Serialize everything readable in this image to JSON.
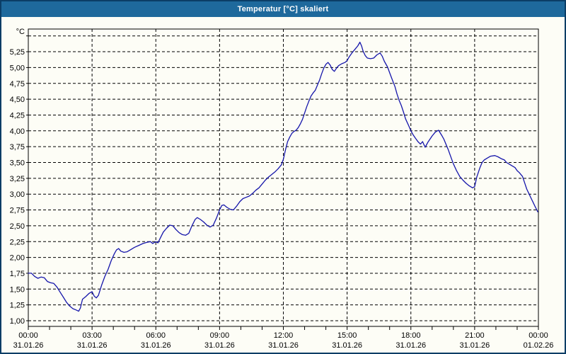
{
  "window": {
    "title": "Temperatur [°C] skaliert"
  },
  "colors": {
    "titlebar": "#1E699C",
    "titlebar_text": "#FFFFFF",
    "window_border": "#0B3D66",
    "background": "#FDFDF6",
    "grid": "#000000",
    "axis_text": "#000000",
    "line": "#1515AA"
  },
  "chart_data": {
    "type": "line",
    "title": "Temperatur [°C] skaliert",
    "xlabel": "",
    "ylabel": "°C",
    "grid": true,
    "legend": "none",
    "y_axis": {
      "unit_label": "°C",
      "min": 1.0,
      "max": 5.5,
      "tick_step": 0.25,
      "decimal_separator": ",",
      "tick_labels": [
        "1,00",
        "1,25",
        "1,50",
        "1,75",
        "2,00",
        "2,25",
        "2,50",
        "2,75",
        "3,00",
        "3,25",
        "3,50",
        "3,75",
        "4,00",
        "4,25",
        "4,50",
        "4,75",
        "5,00",
        "5,25"
      ]
    },
    "x_axis": {
      "hours_span": 24,
      "major_step_hours": 3,
      "minor_step_hours": 1,
      "labels": [
        {
          "h": 0,
          "time": "00:00",
          "date": "31.01.26"
        },
        {
          "h": 3,
          "time": "03:00",
          "date": "31.01.26"
        },
        {
          "h": 6,
          "time": "06:00",
          "date": "31.01.26"
        },
        {
          "h": 9,
          "time": "09:00",
          "date": "31.01.26"
        },
        {
          "h": 12,
          "time": "12:00",
          "date": "31.01.26"
        },
        {
          "h": 15,
          "time": "15:00",
          "date": "31.01.26"
        },
        {
          "h": 18,
          "time": "18:00",
          "date": "31.01.26"
        },
        {
          "h": 21,
          "time": "21:00",
          "date": "31.01.26"
        },
        {
          "h": 24,
          "time": "00:00",
          "date": "01.02.26"
        }
      ]
    },
    "series": [
      {
        "name": "Temperatur",
        "color": "#1515AA",
        "points": [
          [
            0.0,
            1.75
          ],
          [
            0.15,
            1.75
          ],
          [
            0.3,
            1.7
          ],
          [
            0.45,
            1.67
          ],
          [
            0.6,
            1.69
          ],
          [
            0.75,
            1.68
          ],
          [
            0.9,
            1.62
          ],
          [
            1.05,
            1.6
          ],
          [
            1.2,
            1.59
          ],
          [
            1.35,
            1.53
          ],
          [
            1.5,
            1.45
          ],
          [
            1.65,
            1.37
          ],
          [
            1.8,
            1.29
          ],
          [
            1.95,
            1.23
          ],
          [
            2.1,
            1.19
          ],
          [
            2.25,
            1.17
          ],
          [
            2.37,
            1.15
          ],
          [
            2.45,
            1.2
          ],
          [
            2.55,
            1.34
          ],
          [
            2.7,
            1.38
          ],
          [
            2.85,
            1.43
          ],
          [
            3.0,
            1.46
          ],
          [
            3.1,
            1.39
          ],
          [
            3.2,
            1.36
          ],
          [
            3.3,
            1.4
          ],
          [
            3.45,
            1.56
          ],
          [
            3.6,
            1.7
          ],
          [
            3.75,
            1.81
          ],
          [
            3.9,
            1.95
          ],
          [
            4.05,
            2.06
          ],
          [
            4.15,
            2.12
          ],
          [
            4.25,
            2.14
          ],
          [
            4.35,
            2.1
          ],
          [
            4.5,
            2.08
          ],
          [
            4.65,
            2.09
          ],
          [
            4.8,
            2.12
          ],
          [
            5.0,
            2.16
          ],
          [
            5.2,
            2.19
          ],
          [
            5.4,
            2.22
          ],
          [
            5.6,
            2.24
          ],
          [
            5.75,
            2.25
          ],
          [
            5.85,
            2.22
          ],
          [
            6.0,
            2.25
          ],
          [
            6.1,
            2.23
          ],
          [
            6.2,
            2.3
          ],
          [
            6.35,
            2.4
          ],
          [
            6.5,
            2.46
          ],
          [
            6.65,
            2.51
          ],
          [
            6.8,
            2.5
          ],
          [
            6.95,
            2.44
          ],
          [
            7.1,
            2.39
          ],
          [
            7.25,
            2.36
          ],
          [
            7.4,
            2.35
          ],
          [
            7.55,
            2.38
          ],
          [
            7.7,
            2.5
          ],
          [
            7.85,
            2.6
          ],
          [
            7.95,
            2.63
          ],
          [
            8.1,
            2.6
          ],
          [
            8.25,
            2.56
          ],
          [
            8.4,
            2.51
          ],
          [
            8.55,
            2.48
          ],
          [
            8.7,
            2.51
          ],
          [
            8.85,
            2.62
          ],
          [
            9.0,
            2.75
          ],
          [
            9.1,
            2.82
          ],
          [
            9.2,
            2.83
          ],
          [
            9.35,
            2.79
          ],
          [
            9.5,
            2.76
          ],
          [
            9.65,
            2.75
          ],
          [
            9.8,
            2.81
          ],
          [
            9.95,
            2.88
          ],
          [
            10.1,
            2.93
          ],
          [
            10.25,
            2.95
          ],
          [
            10.4,
            2.97
          ],
          [
            10.55,
            3.01
          ],
          [
            10.7,
            3.06
          ],
          [
            10.85,
            3.1
          ],
          [
            11.0,
            3.16
          ],
          [
            11.15,
            3.22
          ],
          [
            11.3,
            3.27
          ],
          [
            11.45,
            3.31
          ],
          [
            11.6,
            3.35
          ],
          [
            11.75,
            3.4
          ],
          [
            11.9,
            3.46
          ],
          [
            12.0,
            3.55
          ],
          [
            12.1,
            3.7
          ],
          [
            12.2,
            3.83
          ],
          [
            12.3,
            3.9
          ],
          [
            12.4,
            3.96
          ],
          [
            12.5,
            3.99
          ],
          [
            12.6,
            4.01
          ],
          [
            12.7,
            4.05
          ],
          [
            12.8,
            4.11
          ],
          [
            12.9,
            4.18
          ],
          [
            13.0,
            4.28
          ],
          [
            13.1,
            4.38
          ],
          [
            13.2,
            4.47
          ],
          [
            13.3,
            4.55
          ],
          [
            13.4,
            4.6
          ],
          [
            13.5,
            4.64
          ],
          [
            13.6,
            4.72
          ],
          [
            13.7,
            4.8
          ],
          [
            13.8,
            4.9
          ],
          [
            13.9,
            4.99
          ],
          [
            14.0,
            5.05
          ],
          [
            14.1,
            5.08
          ],
          [
            14.2,
            5.04
          ],
          [
            14.3,
            4.97
          ],
          [
            14.4,
            4.94
          ],
          [
            14.5,
            4.99
          ],
          [
            14.6,
            5.03
          ],
          [
            14.75,
            5.06
          ],
          [
            14.9,
            5.08
          ],
          [
            15.0,
            5.11
          ],
          [
            15.1,
            5.17
          ],
          [
            15.25,
            5.24
          ],
          [
            15.4,
            5.3
          ],
          [
            15.5,
            5.34
          ],
          [
            15.6,
            5.4
          ],
          [
            15.68,
            5.34
          ],
          [
            15.75,
            5.26
          ],
          [
            15.85,
            5.19
          ],
          [
            15.95,
            5.15
          ],
          [
            16.1,
            5.14
          ],
          [
            16.25,
            5.15
          ],
          [
            16.4,
            5.2
          ],
          [
            16.55,
            5.23
          ],
          [
            16.65,
            5.18
          ],
          [
            16.75,
            5.1
          ],
          [
            16.9,
            5.01
          ],
          [
            17.0,
            4.92
          ],
          [
            17.1,
            4.83
          ],
          [
            17.25,
            4.7
          ],
          [
            17.35,
            4.58
          ],
          [
            17.45,
            4.48
          ],
          [
            17.55,
            4.4
          ],
          [
            17.65,
            4.3
          ],
          [
            17.75,
            4.19
          ],
          [
            17.9,
            4.08
          ],
          [
            18.0,
            4.0
          ],
          [
            18.1,
            3.94
          ],
          [
            18.2,
            3.89
          ],
          [
            18.33,
            3.83
          ],
          [
            18.45,
            3.79
          ],
          [
            18.55,
            3.83
          ],
          [
            18.67,
            3.74
          ],
          [
            18.8,
            3.82
          ],
          [
            19.0,
            3.92
          ],
          [
            19.15,
            3.98
          ],
          [
            19.3,
            4.01
          ],
          [
            19.45,
            3.93
          ],
          [
            19.55,
            3.87
          ],
          [
            19.65,
            3.79
          ],
          [
            19.75,
            3.71
          ],
          [
            19.9,
            3.57
          ],
          [
            20.0,
            3.48
          ],
          [
            20.15,
            3.37
          ],
          [
            20.3,
            3.28
          ],
          [
            20.45,
            3.22
          ],
          [
            20.6,
            3.17
          ],
          [
            20.75,
            3.13
          ],
          [
            20.9,
            3.1
          ],
          [
            21.0,
            3.12
          ],
          [
            21.1,
            3.27
          ],
          [
            21.25,
            3.42
          ],
          [
            21.35,
            3.5
          ],
          [
            21.45,
            3.54
          ],
          [
            21.6,
            3.57
          ],
          [
            21.75,
            3.6
          ],
          [
            21.95,
            3.61
          ],
          [
            22.1,
            3.59
          ],
          [
            22.25,
            3.56
          ],
          [
            22.4,
            3.54
          ],
          [
            22.5,
            3.5
          ],
          [
            22.65,
            3.47
          ],
          [
            22.8,
            3.44
          ],
          [
            22.9,
            3.42
          ],
          [
            23.0,
            3.37
          ],
          [
            23.1,
            3.34
          ],
          [
            23.25,
            3.28
          ],
          [
            23.35,
            3.18
          ],
          [
            23.45,
            3.08
          ],
          [
            23.55,
            3.01
          ],
          [
            23.65,
            2.94
          ],
          [
            23.75,
            2.87
          ],
          [
            23.85,
            2.8
          ],
          [
            23.97,
            2.72
          ]
        ]
      }
    ]
  }
}
